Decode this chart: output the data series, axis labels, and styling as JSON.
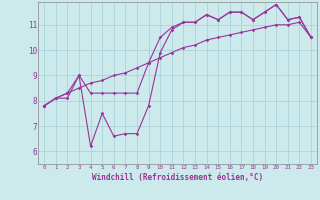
{
  "title": "",
  "xlabel": "Windchill (Refroidissement éolien,°C)",
  "ylabel": "",
  "bg_color": "#cce9ec",
  "grid_color": "#aad4d8",
  "line_color": "#993399",
  "x_ticks": [
    0,
    1,
    2,
    3,
    4,
    5,
    6,
    7,
    8,
    9,
    10,
    11,
    12,
    13,
    14,
    15,
    16,
    17,
    18,
    19,
    20,
    21,
    22,
    23
  ],
  "y_ticks": [
    6,
    7,
    8,
    9,
    10,
    11
  ],
  "xlim": [
    -0.5,
    23.5
  ],
  "ylim": [
    5.5,
    11.9
  ],
  "line1_x": [
    0,
    1,
    2,
    3,
    4,
    5,
    6,
    7,
    8,
    9,
    10,
    11,
    12,
    13,
    14,
    15,
    16,
    17,
    18,
    19,
    20,
    21,
    22,
    23
  ],
  "line1_y": [
    7.8,
    8.1,
    8.1,
    9.0,
    6.2,
    7.5,
    6.6,
    6.7,
    6.7,
    7.8,
    9.9,
    10.8,
    11.1,
    11.1,
    11.4,
    11.2,
    11.5,
    11.5,
    11.2,
    11.5,
    11.8,
    11.2,
    11.3,
    10.5
  ],
  "line2_x": [
    0,
    1,
    2,
    3,
    4,
    5,
    6,
    7,
    8,
    9,
    10,
    11,
    12,
    13,
    14,
    15,
    16,
    17,
    18,
    19,
    20,
    21,
    22,
    23
  ],
  "line2_y": [
    7.8,
    8.1,
    8.3,
    9.0,
    8.3,
    8.3,
    8.3,
    8.3,
    8.3,
    9.5,
    10.5,
    10.9,
    11.1,
    11.1,
    11.4,
    11.2,
    11.5,
    11.5,
    11.2,
    11.5,
    11.8,
    11.2,
    11.3,
    10.5
  ],
  "line3_x": [
    0,
    1,
    2,
    3,
    4,
    5,
    6,
    7,
    8,
    9,
    10,
    11,
    12,
    13,
    14,
    15,
    16,
    17,
    18,
    19,
    20,
    21,
    22,
    23
  ],
  "line3_y": [
    7.8,
    8.1,
    8.3,
    8.5,
    8.7,
    8.8,
    9.0,
    9.1,
    9.3,
    9.5,
    9.7,
    9.9,
    10.1,
    10.2,
    10.4,
    10.5,
    10.6,
    10.7,
    10.8,
    10.9,
    11.0,
    11.0,
    11.1,
    10.5
  ]
}
